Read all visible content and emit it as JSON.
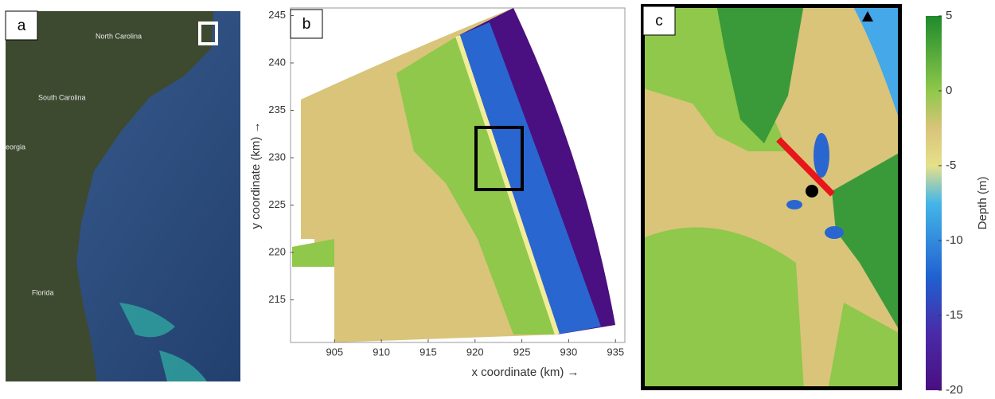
{
  "panels": [
    {
      "label": "a",
      "places": [
        "North Carolina",
        "South Carolina",
        "eorgia",
        "Florida"
      ]
    },
    {
      "label": "b",
      "x_axis": {
        "label": "x coordinate (km) →",
        "ticks": [
          905,
          910,
          915,
          920,
          925,
          930,
          935
        ],
        "lim": [
          900.3,
          936
        ]
      },
      "y_axis": {
        "label": "y coordinate (km) →",
        "ticks": [
          215,
          220,
          225,
          230,
          235,
          240,
          245
        ],
        "lim": [
          210.5,
          245.8
        ]
      }
    },
    {
      "label": "c"
    }
  ],
  "colorbar": {
    "label": "Depth (m)",
    "ticks": [
      5,
      0,
      -5,
      -10,
      -15,
      -20
    ],
    "lim": [
      5,
      -20
    ]
  }
}
